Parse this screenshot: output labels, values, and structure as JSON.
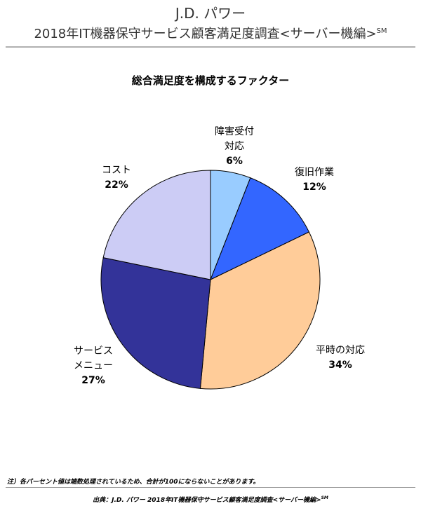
{
  "header": {
    "brand": "J.D. パワー",
    "survey_title": "2018年IT機器保守サービス顧客満足度調査<サーバー機編>",
    "survey_mark": "SM"
  },
  "chart_data": {
    "type": "pie",
    "title": "総合満足度を構成するファクター",
    "slices": [
      {
        "name": "障害受付対応",
        "lines": [
          "障害受付",
          "対応"
        ],
        "value": 6,
        "label": "6%",
        "color": "#99ccff"
      },
      {
        "name": "復旧作業",
        "lines": [
          "復旧作業"
        ],
        "value": 12,
        "label": "12%",
        "color": "#3366ff"
      },
      {
        "name": "平時の対応",
        "lines": [
          "平時の対応"
        ],
        "value": 34,
        "label": "34%",
        "color": "#ffcc99"
      },
      {
        "name": "サービスメニュー",
        "lines": [
          "サービス",
          "メニュー"
        ],
        "value": 27,
        "label": "27%",
        "color": "#333399"
      },
      {
        "name": "コスト",
        "lines": [
          "コスト"
        ],
        "value": 22,
        "label": "22%",
        "color": "#ccccf5"
      }
    ]
  },
  "footer": {
    "note": "注）各パーセント値は端数処理されているため、合計が100にならないことがあります。",
    "source": "出典：J.D. パワー 2018年IT機器保守サービス顧客満足度調査<サーバー機編>",
    "source_mark": "SM"
  }
}
